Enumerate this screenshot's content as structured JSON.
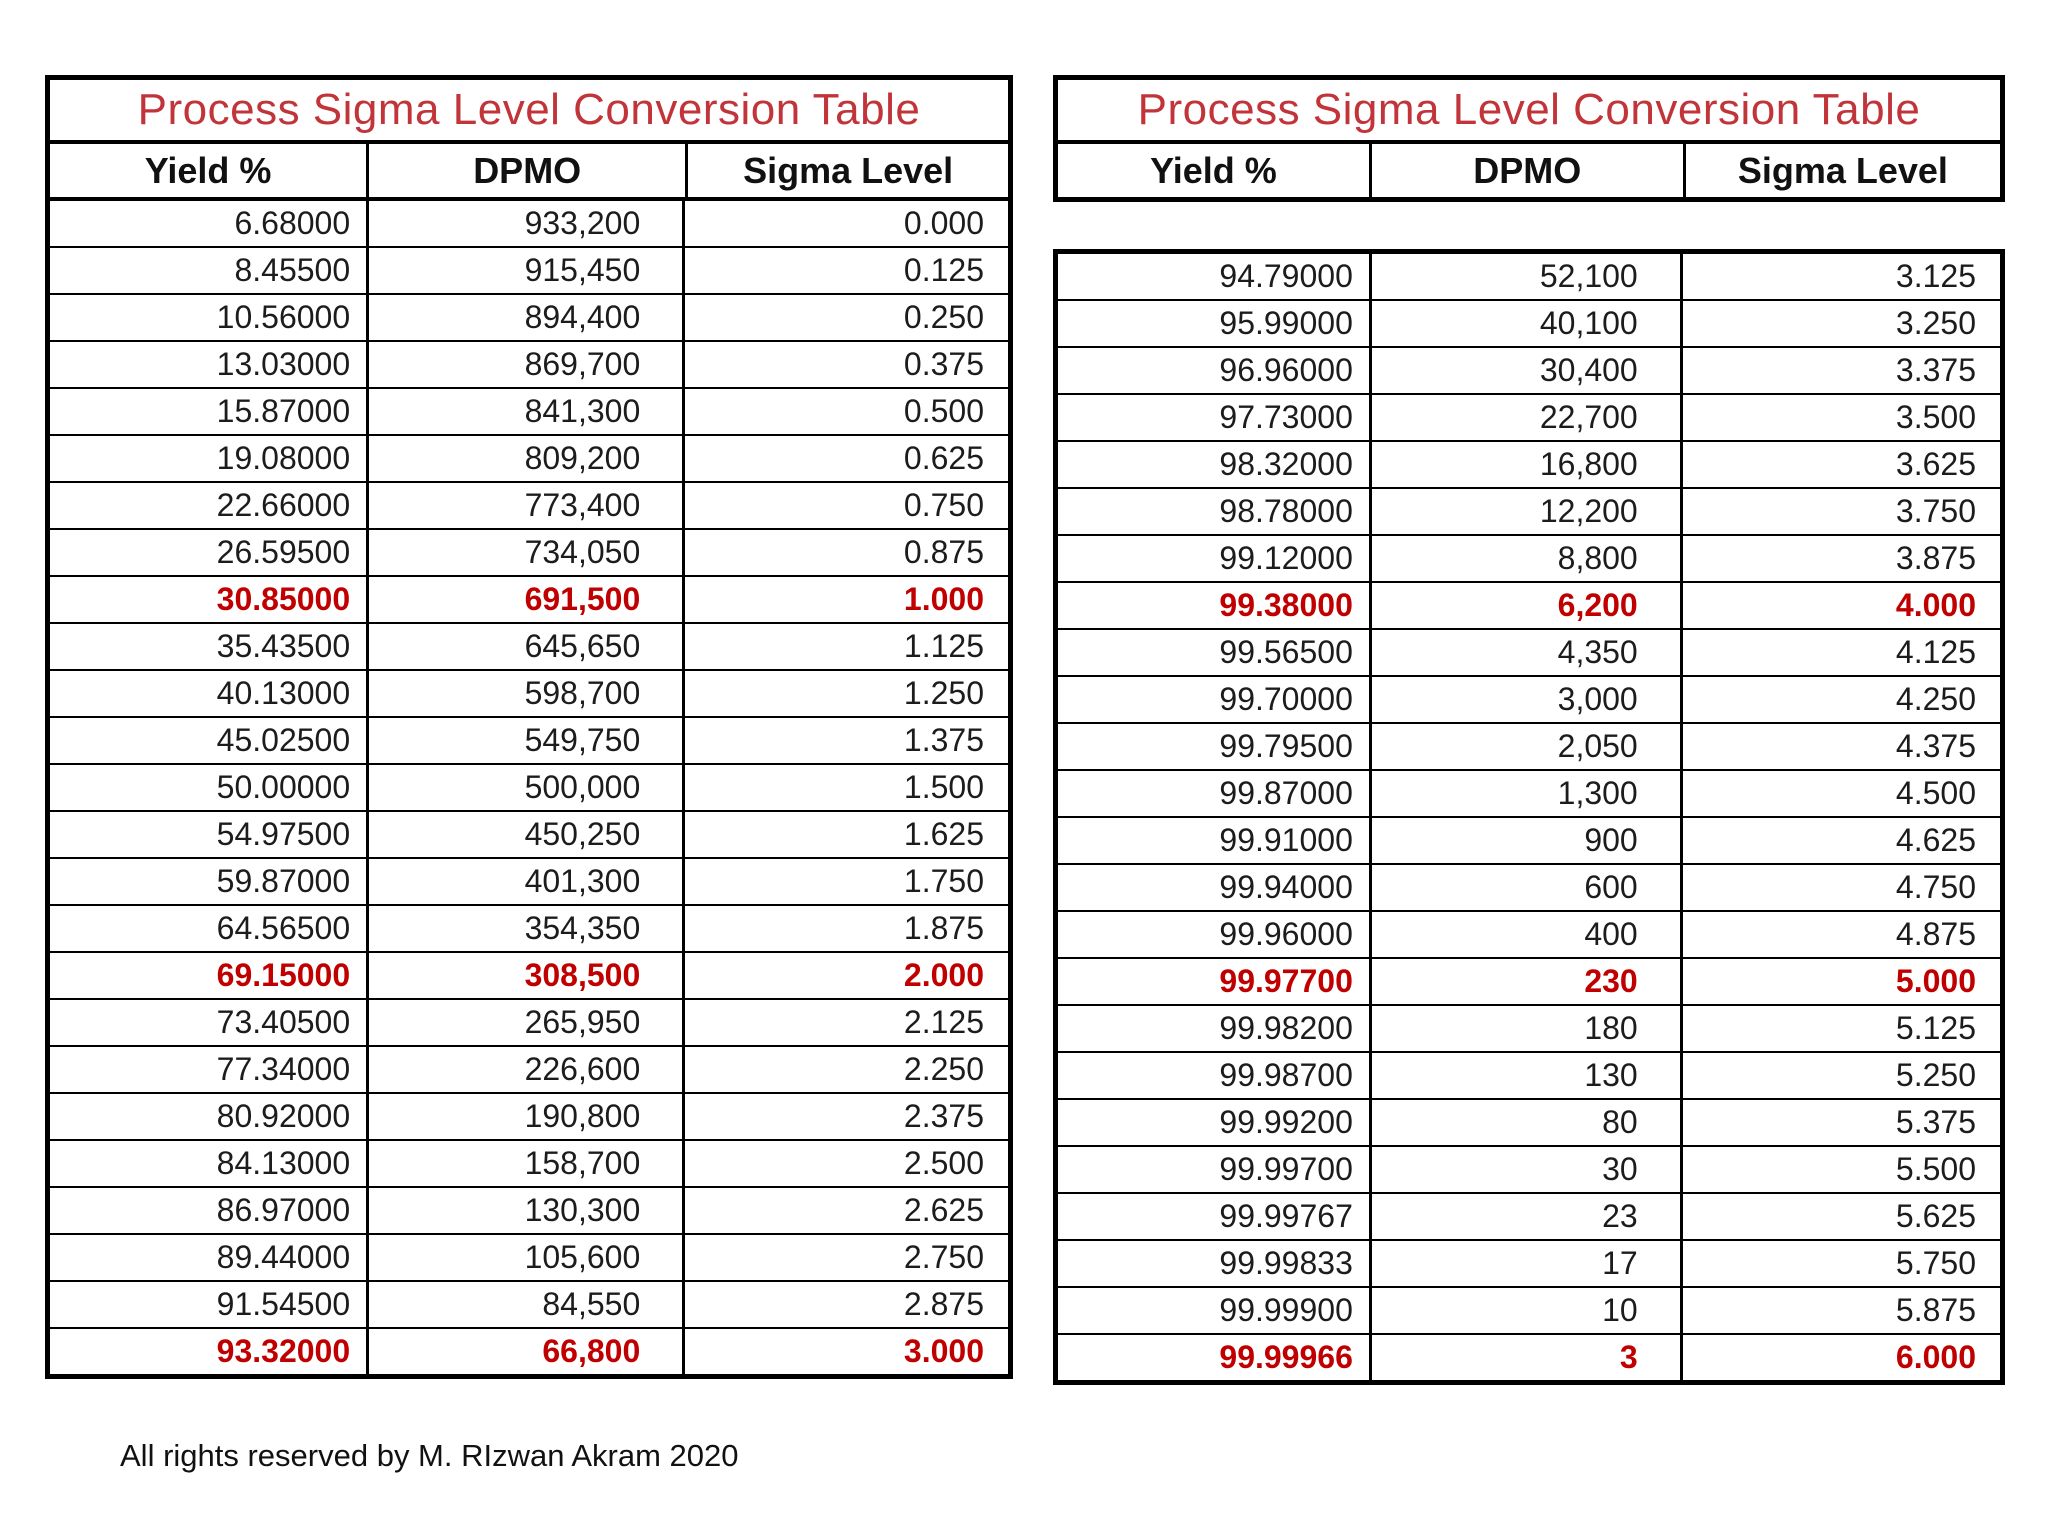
{
  "page": {
    "footer": "All rights reserved by M. RIzwan Akram 2020"
  },
  "colors": {
    "title_red": "#c1343a",
    "highlight_red": "#c00000",
    "text_black": "#1c1c1c",
    "border_black": "#000000",
    "background": "#ffffff"
  },
  "tables": [
    {
      "title": "Process Sigma Level Conversion Table",
      "columns": [
        "Yield %",
        "DPMO",
        "Sigma Level"
      ],
      "gap_rows": 0,
      "rows": [
        {
          "cells": [
            "6.68000",
            "933,200",
            "0.000"
          ],
          "highlight": false
        },
        {
          "cells": [
            "8.45500",
            "915,450",
            "0.125"
          ],
          "highlight": false
        },
        {
          "cells": [
            "10.56000",
            "894,400",
            "0.250"
          ],
          "highlight": false
        },
        {
          "cells": [
            "13.03000",
            "869,700",
            "0.375"
          ],
          "highlight": false
        },
        {
          "cells": [
            "15.87000",
            "841,300",
            "0.500"
          ],
          "highlight": false
        },
        {
          "cells": [
            "19.08000",
            "809,200",
            "0.625"
          ],
          "highlight": false
        },
        {
          "cells": [
            "22.66000",
            "773,400",
            "0.750"
          ],
          "highlight": false
        },
        {
          "cells": [
            "26.59500",
            "734,050",
            "0.875"
          ],
          "highlight": false
        },
        {
          "cells": [
            "30.85000",
            "691,500",
            "1.000"
          ],
          "highlight": true
        },
        {
          "cells": [
            "35.43500",
            "645,650",
            "1.125"
          ],
          "highlight": false
        },
        {
          "cells": [
            "40.13000",
            "598,700",
            "1.250"
          ],
          "highlight": false
        },
        {
          "cells": [
            "45.02500",
            "549,750",
            "1.375"
          ],
          "highlight": false
        },
        {
          "cells": [
            "50.00000",
            "500,000",
            "1.500"
          ],
          "highlight": false
        },
        {
          "cells": [
            "54.97500",
            "450,250",
            "1.625"
          ],
          "highlight": false
        },
        {
          "cells": [
            "59.87000",
            "401,300",
            "1.750"
          ],
          "highlight": false
        },
        {
          "cells": [
            "64.56500",
            "354,350",
            "1.875"
          ],
          "highlight": false
        },
        {
          "cells": [
            "69.15000",
            "308,500",
            "2.000"
          ],
          "highlight": true
        },
        {
          "cells": [
            "73.40500",
            "265,950",
            "2.125"
          ],
          "highlight": false
        },
        {
          "cells": [
            "77.34000",
            "226,600",
            "2.250"
          ],
          "highlight": false
        },
        {
          "cells": [
            "80.92000",
            "190,800",
            "2.375"
          ],
          "highlight": false
        },
        {
          "cells": [
            "84.13000",
            "158,700",
            "2.500"
          ],
          "highlight": false
        },
        {
          "cells": [
            "86.97000",
            "130,300",
            "2.625"
          ],
          "highlight": false
        },
        {
          "cells": [
            "89.44000",
            "105,600",
            "2.750"
          ],
          "highlight": false
        },
        {
          "cells": [
            "91.54500",
            "84,550",
            "2.875"
          ],
          "highlight": false
        },
        {
          "cells": [
            "93.32000",
            "66,800",
            "3.000"
          ],
          "highlight": true
        }
      ]
    },
    {
      "title": "Process Sigma Level Conversion Table",
      "columns": [
        "Yield %",
        "DPMO",
        "Sigma Level"
      ],
      "gap_rows": 1,
      "rows": [
        {
          "cells": [
            "94.79000",
            "52,100",
            "3.125"
          ],
          "highlight": false
        },
        {
          "cells": [
            "95.99000",
            "40,100",
            "3.250"
          ],
          "highlight": false
        },
        {
          "cells": [
            "96.96000",
            "30,400",
            "3.375"
          ],
          "highlight": false
        },
        {
          "cells": [
            "97.73000",
            "22,700",
            "3.500"
          ],
          "highlight": false
        },
        {
          "cells": [
            "98.32000",
            "16,800",
            "3.625"
          ],
          "highlight": false
        },
        {
          "cells": [
            "98.78000",
            "12,200",
            "3.750"
          ],
          "highlight": false
        },
        {
          "cells": [
            "99.12000",
            "8,800",
            "3.875"
          ],
          "highlight": false
        },
        {
          "cells": [
            "99.38000",
            "6,200",
            "4.000"
          ],
          "highlight": true
        },
        {
          "cells": [
            "99.56500",
            "4,350",
            "4.125"
          ],
          "highlight": false
        },
        {
          "cells": [
            "99.70000",
            "3,000",
            "4.250"
          ],
          "highlight": false
        },
        {
          "cells": [
            "99.79500",
            "2,050",
            "4.375"
          ],
          "highlight": false
        },
        {
          "cells": [
            "99.87000",
            "1,300",
            "4.500"
          ],
          "highlight": false
        },
        {
          "cells": [
            "99.91000",
            "900",
            "4.625"
          ],
          "highlight": false
        },
        {
          "cells": [
            "99.94000",
            "600",
            "4.750"
          ],
          "highlight": false
        },
        {
          "cells": [
            "99.96000",
            "400",
            "4.875"
          ],
          "highlight": false
        },
        {
          "cells": [
            "99.97700",
            "230",
            "5.000"
          ],
          "highlight": true
        },
        {
          "cells": [
            "99.98200",
            "180",
            "5.125"
          ],
          "highlight": false
        },
        {
          "cells": [
            "99.98700",
            "130",
            "5.250"
          ],
          "highlight": false
        },
        {
          "cells": [
            "99.99200",
            "80",
            "5.375"
          ],
          "highlight": false
        },
        {
          "cells": [
            "99.99700",
            "30",
            "5.500"
          ],
          "highlight": false
        },
        {
          "cells": [
            "99.99767",
            "23",
            "5.625"
          ],
          "highlight": false
        },
        {
          "cells": [
            "99.99833",
            "17",
            "5.750"
          ],
          "highlight": false
        },
        {
          "cells": [
            "99.99900",
            "10",
            "5.875"
          ],
          "highlight": false
        },
        {
          "cells": [
            "99.99966",
            "3",
            "6.000"
          ],
          "highlight": true
        }
      ]
    }
  ]
}
